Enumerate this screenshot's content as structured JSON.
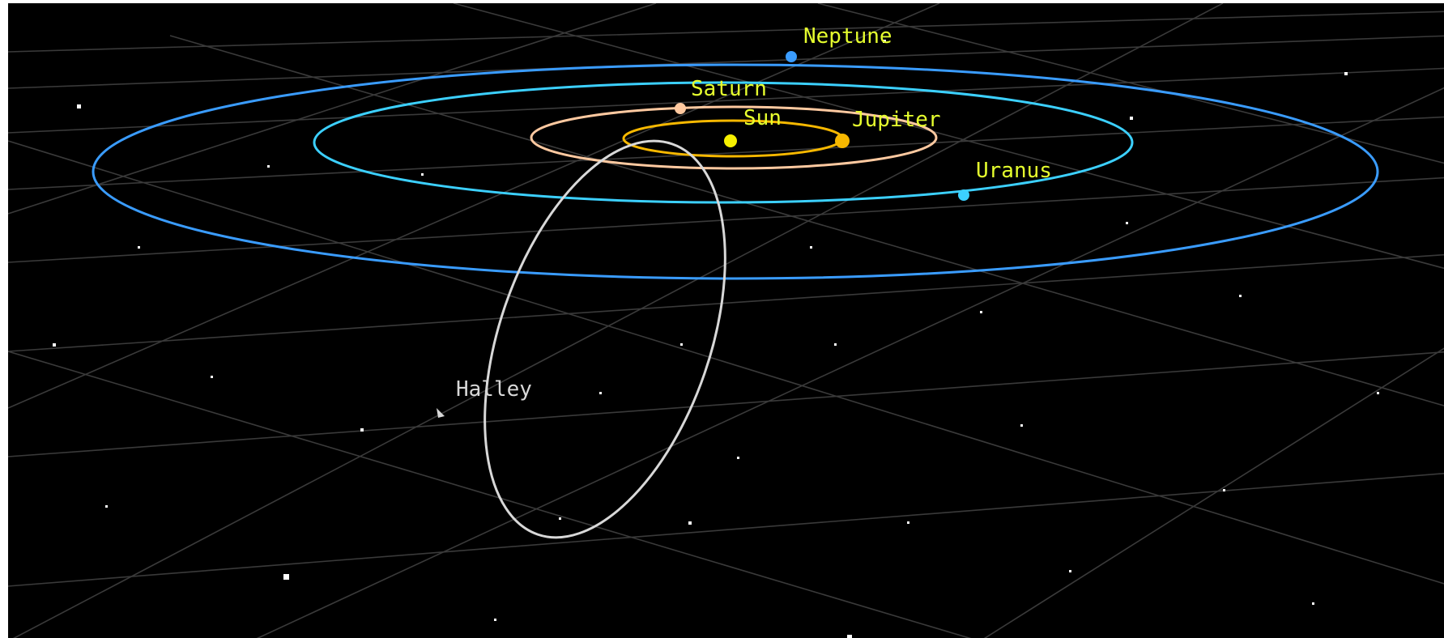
{
  "scene": {
    "background": "#000000",
    "grid_color": "#3a3a3a",
    "label_color": "#e6ff2e",
    "comet_label_color": "#d8d8d8"
  },
  "bodies": [
    {
      "id": "sun",
      "label": "Sun",
      "color": "#f7f000",
      "icon": "sun-icon"
    },
    {
      "id": "jupiter",
      "label": "Jupiter",
      "color": "#f7b800",
      "icon": "jupiter-icon"
    },
    {
      "id": "saturn",
      "label": "Saturn",
      "color": "#ffc9a0",
      "icon": "saturn-icon"
    },
    {
      "id": "uranus",
      "label": "Uranus",
      "color": "#3cd0ff",
      "icon": "uranus-icon"
    },
    {
      "id": "neptune",
      "label": "Neptune",
      "color": "#3a9cff",
      "icon": "neptune-icon"
    },
    {
      "id": "halley",
      "label": "Halley",
      "color": "#d8d8d8",
      "icon": "comet-icon"
    }
  ]
}
